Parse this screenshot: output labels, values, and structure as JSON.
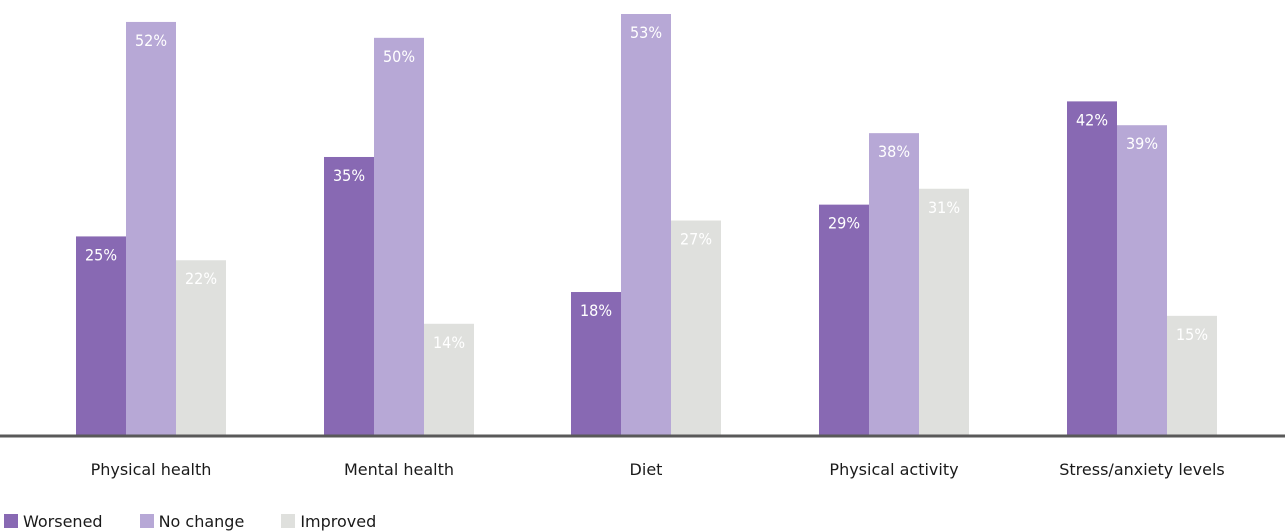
{
  "chart_data": {
    "type": "bar",
    "categories": [
      "Physical health",
      "Mental health",
      "Diet",
      "Physical activity",
      "Stress/anxiety levels"
    ],
    "series": [
      {
        "name": "Worsened",
        "values": [
          25,
          35,
          18,
          29,
          42
        ],
        "color": "#8869b3"
      },
      {
        "name": "No change",
        "values": [
          52,
          50,
          53,
          38,
          39
        ],
        "color": "#b7a8d6"
      },
      {
        "name": "Improved",
        "values": [
          22,
          14,
          27,
          31,
          15
        ],
        "color": "#dfe0dd"
      }
    ],
    "value_suffix": "%",
    "label_colors": {
      "Worsened": "#ffffff",
      "No change": "#ffffff",
      "Improved": "#ffffff"
    },
    "axis_color": "#595959",
    "ylim": [
      0,
      53
    ],
    "grid": false,
    "legend_position": "bottom-left"
  }
}
